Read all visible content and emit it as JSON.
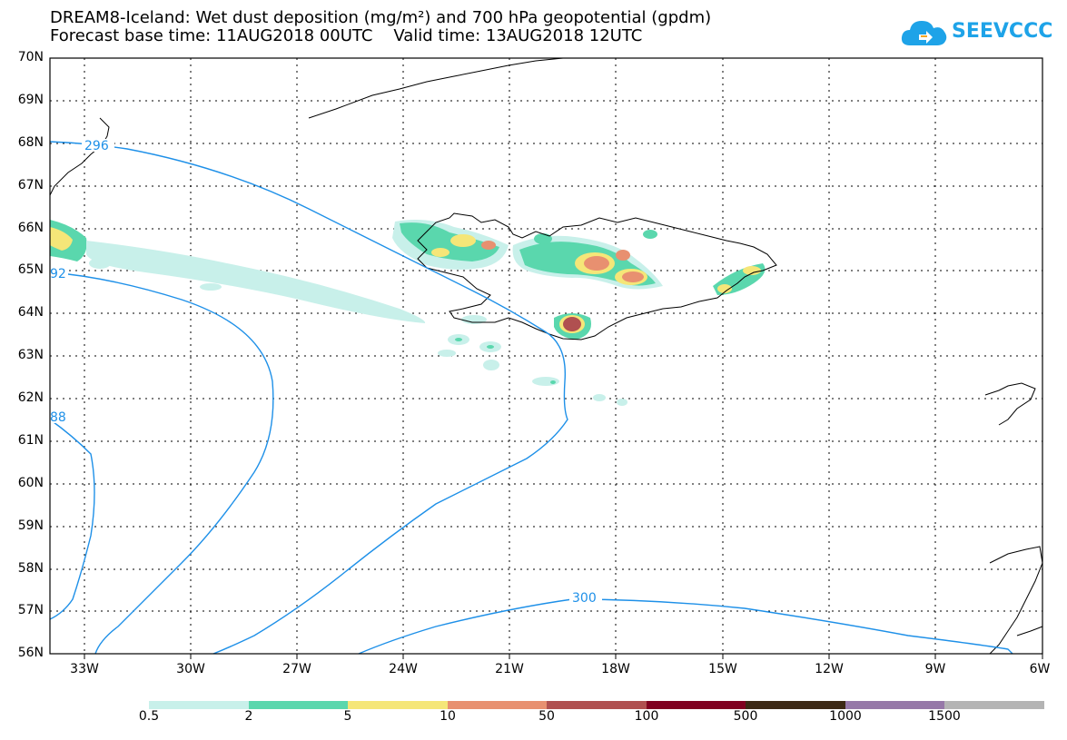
{
  "title_line1": "DREAM8-Iceland: Wet dust deposition (mg/m²) and 700 hPa geopotential (gpdm)",
  "title_line2": "Forecast base time: 11AUG2018 00UTC    Valid time: 13AUG2018 12UTC",
  "logo_text": "SEEVCCC",
  "logo_color": "#1ea3e8",
  "latitudes": [
    "70N",
    "69N",
    "68N",
    "67N",
    "66N",
    "65N",
    "64N",
    "63N",
    "62N",
    "61N",
    "60N",
    "59N",
    "58N",
    "57N",
    "56N"
  ],
  "longitudes": [
    "33W",
    "30W",
    "27W",
    "24W",
    "21W",
    "18W",
    "15W",
    "12W",
    "9W",
    "6W"
  ],
  "contour_labels": [
    "296",
    "92",
    "88",
    "300"
  ],
  "contour_color": "#1e90e8",
  "colorbar": {
    "labels": [
      "0.5",
      "2",
      "5",
      "10",
      "50",
      "100",
      "500",
      "1000",
      "1500"
    ],
    "colors": [
      "#c8f0ea",
      "#5ad7ad",
      "#f5e678",
      "#e89070",
      "#b05050",
      "#800020",
      "#3c2814",
      "#9678a8",
      "#b4b4b4"
    ]
  }
}
